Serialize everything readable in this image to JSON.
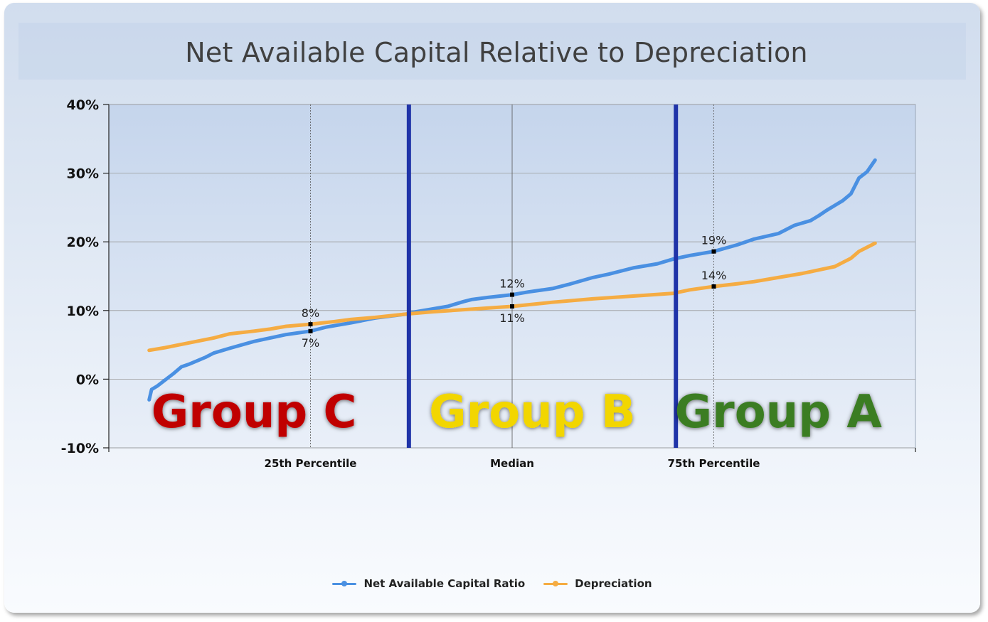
{
  "chart_data": {
    "type": "line",
    "title": "Net Available Capital Relative to Depreciation",
    "xlabel": "",
    "ylabel": "",
    "ylim": [
      -10,
      40
    ],
    "y_ticks": [
      "40%",
      "30%",
      "20%",
      "10%",
      "0%",
      "-10%"
    ],
    "x_tick_labels": [
      {
        "x": 25,
        "label": "25th Percentile"
      },
      {
        "x": 50,
        "label": "Median"
      },
      {
        "x": 75,
        "label": "75th Percentile"
      }
    ],
    "xlim": [
      0,
      100
    ],
    "grid": true,
    "legend_position": "bottom",
    "series": [
      {
        "name": "Net Available Capital Ratio",
        "color": "#4a90e2",
        "x": [
          5,
          5.3,
          6,
          8,
          9,
          10,
          12,
          13,
          15,
          18,
          20,
          22,
          25,
          27,
          30,
          33,
          37,
          38,
          40,
          42,
          44,
          45,
          47,
          50,
          52,
          55,
          57,
          60,
          62,
          65,
          68,
          70,
          72,
          75,
          78,
          80,
          83,
          85,
          87,
          88,
          89,
          90,
          91,
          92,
          93,
          94,
          95
        ],
        "values": [
          -3,
          -1.5,
          -1,
          0.8,
          1.8,
          2.2,
          3.2,
          3.8,
          4.5,
          5.5,
          6.0,
          6.5,
          7,
          7.6,
          8.2,
          8.9,
          9.5,
          9.8,
          10.2,
          10.6,
          11.3,
          11.6,
          11.9,
          12.3,
          12.7,
          13.2,
          13.8,
          14.8,
          15.3,
          16.2,
          16.8,
          17.5,
          18.0,
          18.6,
          19.6,
          20.4,
          21.2,
          22.4,
          23.1,
          23.8,
          24.6,
          25.3,
          26.0,
          27.0,
          29.3,
          30.2,
          31.9
        ]
      },
      {
        "name": "Depreciation",
        "color": "#f5ac43",
        "x": [
          5,
          7,
          10,
          13,
          15,
          18,
          20,
          22,
          25,
          28,
          30,
          33,
          37,
          40,
          45,
          50,
          55,
          60,
          65,
          70,
          72,
          75,
          78,
          80,
          83,
          86,
          88,
          90,
          91,
          92,
          93,
          94,
          95
        ],
        "values": [
          4.2,
          4.6,
          5.3,
          6.0,
          6.6,
          7.0,
          7.3,
          7.7,
          8,
          8.4,
          8.7,
          9.0,
          9.5,
          9.8,
          10.2,
          10.6,
          11.2,
          11.7,
          12.1,
          12.5,
          13.0,
          13.5,
          13.9,
          14.2,
          14.8,
          15.4,
          15.9,
          16.4,
          17.0,
          17.6,
          18.6,
          19.2,
          19.8
        ]
      }
    ],
    "marker_labels": [
      {
        "x": 25,
        "y": 8,
        "label": "8%",
        "pos": "above"
      },
      {
        "x": 25,
        "y": 7,
        "label": "7%",
        "pos": "below"
      },
      {
        "x": 50,
        "y": 12.3,
        "label": "12%",
        "pos": "above"
      },
      {
        "x": 50,
        "y": 10.6,
        "label": "11%",
        "pos": "below"
      },
      {
        "x": 75,
        "y": 18.6,
        "label": "19%",
        "pos": "above"
      },
      {
        "x": 75,
        "y": 13.5,
        "label": "14%",
        "pos": "above"
      }
    ],
    "group_dividers_x": [
      37.2,
      70.3
    ],
    "groups": [
      {
        "label": "Group C",
        "color": "#c00000",
        "x_center": 18
      },
      {
        "label": "Group B",
        "color": "#f2d600",
        "x_center": 52.5
      },
      {
        "label": "Group A",
        "color": "#3a7d22",
        "x_center": 83
      }
    ],
    "colors": {
      "divider": "#1f33a8",
      "grid": "#999999",
      "percentile_line": "#555555"
    }
  }
}
